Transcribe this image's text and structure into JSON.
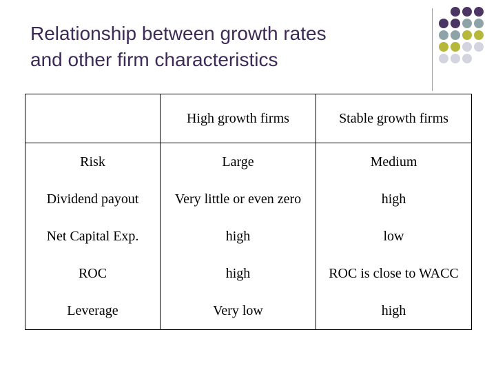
{
  "slide": {
    "title_line1": "Relationship between growth rates",
    "title_line2": "and other firm characteristics"
  },
  "decoration": {
    "dot_colors": [
      "#4b3563",
      "#8ea3a8",
      "#b5b83a",
      "#d4d4e0"
    ],
    "dot_grid": [
      [
        "",
        "purple",
        "purple",
        "purple"
      ],
      [
        "purple",
        "purple",
        "gray",
        "gray"
      ],
      [
        "gray",
        "gray",
        "yellow",
        "yellow"
      ],
      [
        "yellow",
        "yellow",
        "lavender",
        "lavender"
      ],
      [
        "lavender",
        "lavender",
        "lavender",
        ""
      ]
    ]
  },
  "table": {
    "columns": [
      "",
      "High growth firms",
      "Stable growth firms"
    ],
    "rows": [
      {
        "label": "Risk",
        "high": "Large",
        "stable": "Medium"
      },
      {
        "label": "Dividend payout",
        "high": "Very little or even zero",
        "stable": "high"
      },
      {
        "label": "Net Capital Exp.",
        "high": "high",
        "stable": "low"
      },
      {
        "label": "ROC",
        "high": "high",
        "stable": "ROC is close to WACC"
      },
      {
        "label": "Leverage",
        "high": "Very low",
        "stable": "high"
      }
    ]
  }
}
